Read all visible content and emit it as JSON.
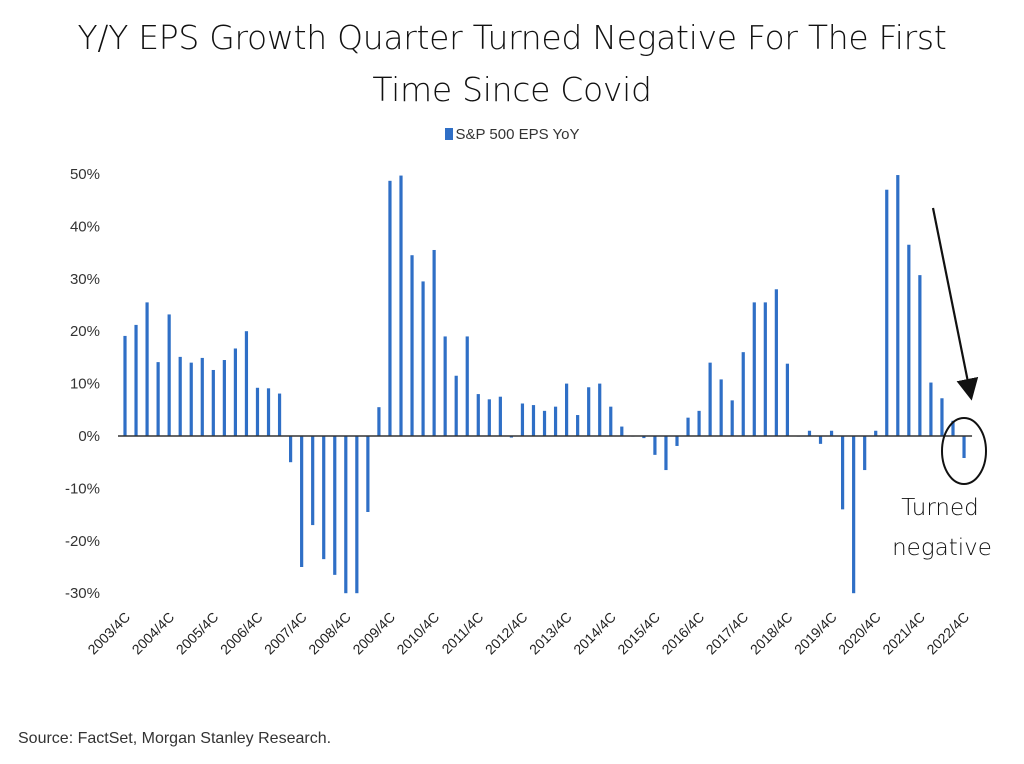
{
  "chart_data": {
    "type": "bar",
    "title": "Y/Y EPS Growth Quarter Turned Negative For The First Time Since Covid",
    "title_lines": [
      "Y/Y EPS Growth Quarter Turned Negative For The First",
      "Time Since Covid"
    ],
    "xlabel": "",
    "ylabel": "",
    "ylim": [
      -30,
      50
    ],
    "yticks": [
      50,
      40,
      30,
      20,
      10,
      0,
      -10,
      -20,
      -30
    ],
    "ytick_labels": [
      "50%",
      "40%",
      "30%",
      "20%",
      "10%",
      "0%",
      "-10%",
      "-20%",
      "-30%"
    ],
    "xtick_labels": [
      "2003/4C",
      "2004/4C",
      "2005/4C",
      "2006/4C",
      "2007/4C",
      "2008/4C",
      "2009/4C",
      "2010/4C",
      "2011/4C",
      "2012/4C",
      "2013/4C",
      "2014/4C",
      "2015/4C",
      "2016/4C",
      "2017/4C",
      "2018/4C",
      "2019/4C",
      "2020/4C",
      "2021/4C",
      "2022/4C"
    ],
    "grid": false,
    "legend": {
      "position": "top-center",
      "entries": [
        "S&P 500 EPS YoY"
      ]
    },
    "categories_note": "Quarterly, 2003 Q4 through 2022 Q4",
    "series": [
      {
        "name": "S&P 500 EPS YoY",
        "color": "#2f6fc6",
        "values": [
          19.1,
          21.2,
          25.5,
          14.1,
          23.2,
          15.1,
          14.0,
          14.9,
          12.6,
          14.5,
          16.7,
          20.0,
          9.2,
          9.1,
          8.1,
          -5.0,
          -25.0,
          -17.0,
          -23.5,
          -26.5,
          -30.0,
          -30.0,
          -14.5,
          5.5,
          48.7,
          49.7,
          34.5,
          29.5,
          35.5,
          19.0,
          11.5,
          19.0,
          8.0,
          7.0,
          7.5,
          -0.3,
          6.2,
          5.9,
          4.8,
          5.6,
          10.0,
          4.0,
          9.3,
          10.0,
          5.6,
          1.8,
          0.0,
          -0.4,
          -3.6,
          -6.5,
          -1.9,
          3.5,
          4.8,
          14.0,
          10.8,
          6.8,
          16.0,
          25.5,
          25.5,
          28.0,
          13.8,
          0.0,
          1.0,
          -1.5,
          1.0,
          -14.0,
          -30.0,
          -6.5,
          1.0,
          47.0,
          49.8,
          36.5,
          30.7,
          10.2,
          7.2,
          2.9,
          -4.2
        ]
      }
    ],
    "annotations": [
      {
        "type": "arrow",
        "target": "last quarter (2022 Q4)"
      },
      {
        "type": "circle",
        "target": "last quarter (2022 Q4)"
      },
      {
        "type": "text",
        "lines": [
          "Turned",
          "negative"
        ]
      }
    ],
    "source": "Source: FactSet, Morgan Stanley Research."
  }
}
